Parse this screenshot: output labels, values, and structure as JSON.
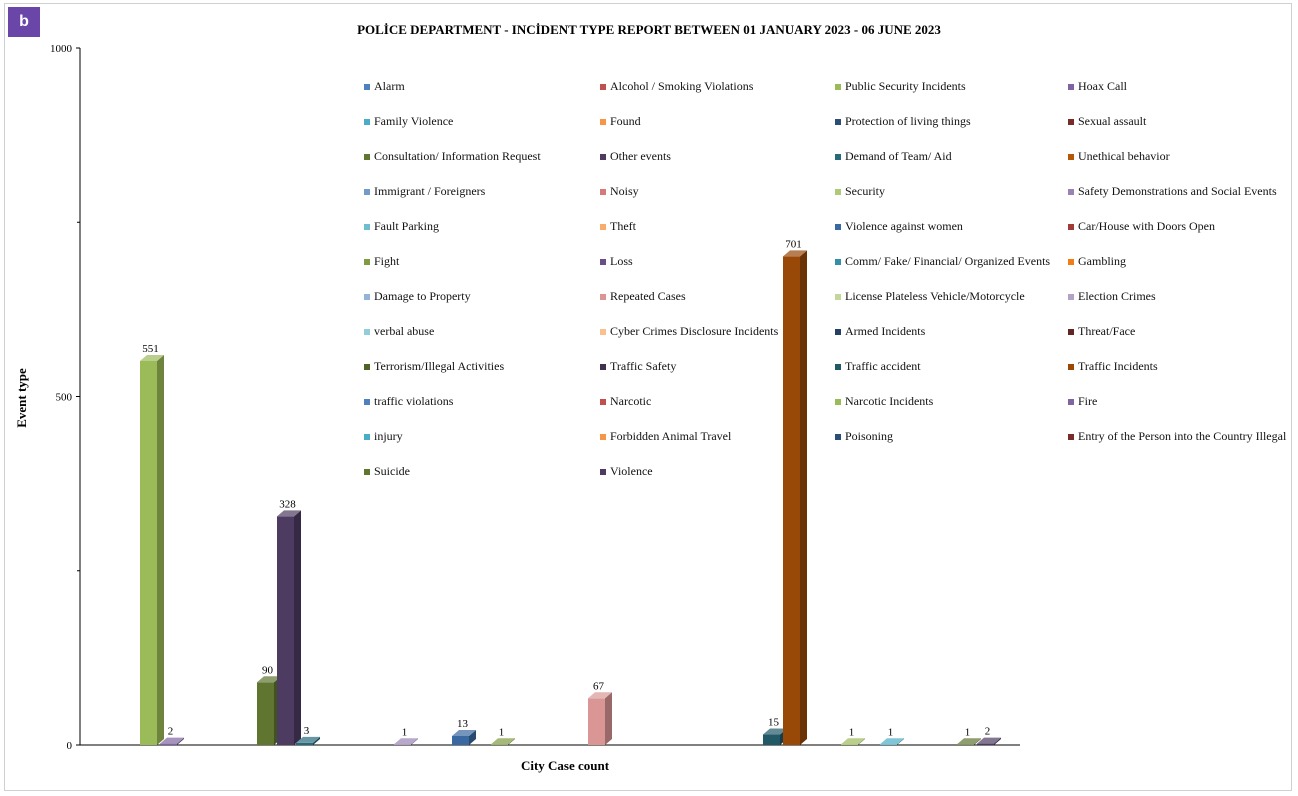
{
  "badge": "b",
  "chart_data": {
    "type": "bar",
    "title": "POLİCE DEPARTMENT - INCİDENT TYPE REPORT BETWEEN 01 JANUARY 2023 - 06 JUNE 2023",
    "xlabel": "City Case count",
    "ylabel": "Event type",
    "ylim": [
      0,
      1000
    ],
    "yticks": [
      0,
      500,
      1000
    ],
    "legend_position": "top-right",
    "colors": {
      "Alarm": "#4f81bd",
      "Alcohol / Smoking Violations": "#c0504d",
      "Public Security Incidents": "#9bbb59",
      "Hoax Call": "#8064a2",
      "Family Violence": "#4bacc6",
      "Found": "#f79646",
      "Protection of living things": "#2c4d75",
      "Sexual assault": "#772c2a",
      "Consultation/ Information Request": "#5f7530",
      "Other events": "#4d3b62",
      "Demand of Team/  Aid": "#276a7c",
      "Unethical behavior": "#b65708",
      "Immigrant / Foreigners": "#729aca",
      "Noisy": "#d6797a",
      "Security": "#afc97a",
      "Safety Demonstrations and Social Events": "#9983b5",
      "Fault Parking": "#6fbdd1",
      "Theft": "#f9ab6b",
      "Violence against women": "#3a68a0",
      "Car/House with Doors Open": "#a03b38",
      "Fight": "#7f9c40",
      "Loss": "#6a4f87",
      "Comm/ Fake/ Financial/ Organized Events": "#358fa7",
      "Gambling": "#f07e14",
      "Damage to Property": "#95b3d7",
      "Repeated Cases": "#d99694",
      "License Plateless Vehicle/Motorcycle": "#c3d69b",
      "Election Crimes": "#b2a2c7",
      "verbal abuse": "#92cddc",
      "Cyber Crimes Disclosure Incidents": "#fac08f",
      "Armed Incidents": "#244062",
      "Threat/Face": "#632523",
      "Terrorism/Illegal Activities": "#4f6228",
      "Traffic Safety": "#403151",
      "Traffic accident": "#215967",
      "Traffic Incidents": "#984807",
      "traffic violations": "#4f81bd",
      "Narcotic": "#c0504d",
      "Narcotic Incidents": "#9bbb59",
      "Fire": "#8064a2",
      "injury": "#4bacc6",
      "Forbidden Animal Travel": "#f79646",
      "Poisoning": "#2c4d75",
      "Entry of the Person into the Country Illegal": "#772c2a",
      "Suicide": "#5f7530",
      "Violence": "#4d3b62"
    },
    "categories": [
      "Alarm",
      "Alcohol / Smoking Violations",
      "Public Security Incidents",
      "Hoax Call",
      "Family Violence",
      "Found",
      "Protection of living things",
      "Sexual assault",
      "Consultation/ Information Request",
      "Other events",
      "Demand of Team/  Aid",
      "Unethical behavior",
      "Immigrant / Foreigners",
      "Noisy",
      "Security",
      "Safety Demonstrations and Social Events",
      "Fault Parking",
      "Theft",
      "Violence against women",
      "Car/House with Doors Open",
      "Fight",
      "Loss",
      "Comm/ Fake/ Financial/ Organized Events",
      "Gambling",
      "Damage to Property",
      "Repeated Cases",
      "License Plateless Vehicle/Motorcycle",
      "Election Crimes",
      "verbal abuse",
      "Cyber Crimes Disclosure Incidents",
      "Armed Incidents",
      "Threat/Face",
      "Terrorism/Illegal Activities",
      "Traffic Safety",
      "Traffic accident",
      "Traffic Incidents",
      "traffic violations",
      "Narcotic",
      "Narcotic Incidents",
      "Fire",
      "injury",
      "Forbidden Animal Travel",
      "Poisoning",
      "Entry of the Person into the Country Illegal",
      "Suicide",
      "Violence"
    ],
    "values": [
      null,
      null,
      551,
      2,
      null,
      null,
      null,
      null,
      90,
      328,
      3,
      null,
      null,
      null,
      null,
      1,
      null,
      null,
      13,
      null,
      1,
      null,
      null,
      null,
      null,
      67,
      null,
      null,
      null,
      null,
      null,
      null,
      null,
      null,
      15,
      701,
      null,
      null,
      1,
      null,
      1,
      null,
      null,
      null,
      1,
      2
    ]
  }
}
